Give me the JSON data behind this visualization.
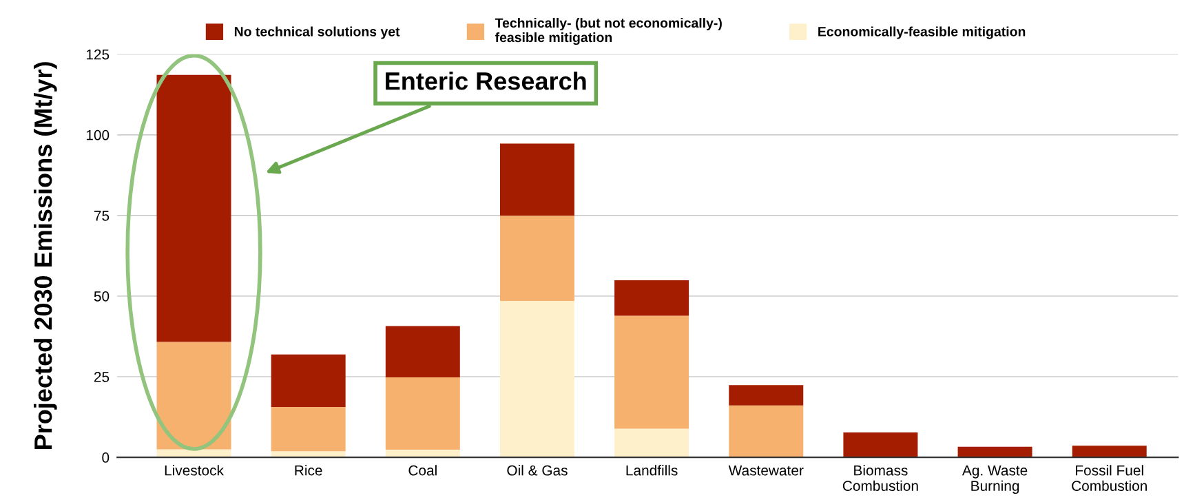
{
  "chart_data": {
    "type": "bar",
    "stacked": true,
    "ylabel": "Projected 2030 Emissions (Mt/yr)",
    "categories": [
      "Livestock",
      "Rice",
      "Coal",
      "Oil & Gas",
      "Landfills",
      "Wastewater",
      "Biomass\nCombustion",
      "Ag. Waste\nBurning",
      "Fossil Fuel\nCombustion"
    ],
    "series": [
      {
        "name": "Economically-feasible mitigation",
        "color": "#fff0cc",
        "values": [
          2.5,
          1.9,
          2.4,
          48.5,
          8.9,
          0,
          0,
          0,
          0
        ]
      },
      {
        "name": "Technically- (but not economically-)\nfeasible mitigation",
        "color": "#f5b16d",
        "values": [
          33.3,
          13.7,
          22.4,
          26.4,
          35.0,
          16.1,
          0,
          0,
          0
        ]
      },
      {
        "name": "No technical solutions yet",
        "color": "#a51d00",
        "values": [
          82.8,
          16.3,
          15.9,
          22.4,
          11.0,
          6.3,
          7.7,
          3.3,
          3.6
        ]
      }
    ],
    "ylim": [
      0,
      125
    ],
    "yticks": [
      0,
      25,
      50,
      75,
      100,
      125
    ],
    "grid": "y",
    "legend": "top",
    "annotations": [
      "Enteric Research"
    ]
  }
}
